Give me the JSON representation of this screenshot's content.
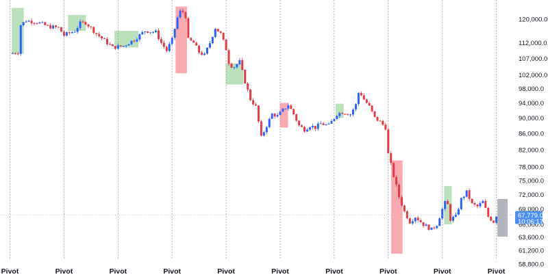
{
  "chart_data": {
    "type": "candlestick",
    "title": "",
    "xlabel": "",
    "ylabel": "",
    "ylim": [
      58000,
      125000
    ],
    "y_scale": "log",
    "y_ticks": [
      {
        "value": 120000,
        "label": "120,000.0"
      },
      {
        "value": 112000,
        "label": "112,000.0"
      },
      {
        "value": 107000,
        "label": "107,000.0"
      },
      {
        "value": 102000,
        "label": "102,000.0"
      },
      {
        "value": 98000,
        "label": "98,000.0"
      },
      {
        "value": 94000,
        "label": "94,000.0"
      },
      {
        "value": 90000,
        "label": "90,000.0"
      },
      {
        "value": 86000,
        "label": "86,000.0"
      },
      {
        "value": 82000,
        "label": "82,000.0"
      },
      {
        "value": 78000,
        "label": "78,000.0"
      },
      {
        "value": 75000,
        "label": "75,000.0"
      },
      {
        "value": 72000,
        "label": "72,000.0"
      },
      {
        "value": 69000,
        "label": "69,000.0"
      },
      {
        "value": 66000,
        "label": "66,000.0"
      },
      {
        "value": 63600,
        "label": "63,600.0"
      },
      {
        "value": 61200,
        "label": "61,200.0"
      },
      {
        "value": 58800,
        "label": "58,800.0"
      }
    ],
    "pivot_label": "Pivot",
    "pivots": [
      0,
      1,
      2,
      3,
      4,
      5,
      6,
      7,
      8,
      9
    ],
    "current_price": {
      "value": 67779,
      "label": "67,779.0",
      "countdown": "10:06:17"
    },
    "colors": {
      "up": "#2962ff",
      "down": "#e53946",
      "zone_green": "#4caf50",
      "zone_red": "#f23645",
      "pivot_line": "#9598a1",
      "price_tag": "#4a8ef5",
      "grey_box": "#b2b5be"
    },
    "anchors": [
      [
        0,
        108500
      ],
      [
        1.5,
        109000
      ],
      [
        2,
        118000
      ],
      [
        3,
        119500
      ],
      [
        5,
        119000
      ],
      [
        7,
        117500
      ],
      [
        9,
        117000
      ],
      [
        10,
        114500
      ],
      [
        12,
        116000
      ],
      [
        13,
        118500
      ],
      [
        14,
        118800
      ],
      [
        16,
        115000
      ],
      [
        18,
        112000
      ],
      [
        19,
        110500
      ],
      [
        21,
        111000
      ],
      [
        23,
        113000
      ],
      [
        25,
        116000
      ],
      [
        27,
        115500
      ],
      [
        28,
        112000
      ],
      [
        29,
        109500
      ],
      [
        30,
        113000
      ],
      [
        31,
        120500
      ],
      [
        31.7,
        123500
      ],
      [
        32.5,
        121000
      ],
      [
        33,
        113000
      ],
      [
        34,
        112000
      ],
      [
        35,
        109000
      ],
      [
        36,
        108000
      ],
      [
        37,
        112000
      ],
      [
        38,
        117000
      ],
      [
        39,
        115000
      ],
      [
        40,
        110000
      ],
      [
        40.6,
        105000
      ],
      [
        41.5,
        104500
      ],
      [
        42.5,
        106000
      ],
      [
        43.5,
        100000
      ],
      [
        44.5,
        95000
      ],
      [
        45.5,
        93000
      ],
      [
        46.5,
        85000
      ],
      [
        47.5,
        88000
      ],
      [
        48.5,
        91000
      ],
      [
        49.5,
        90500
      ],
      [
        50.5,
        92000
      ],
      [
        51.5,
        93500
      ],
      [
        52.5,
        91000
      ],
      [
        53.5,
        88000
      ],
      [
        54.5,
        87000
      ],
      [
        55.5,
        88000
      ],
      [
        56.5,
        87500
      ],
      [
        57.5,
        88500
      ],
      [
        59,
        88000
      ],
      [
        60.5,
        91000
      ],
      [
        61.5,
        91500
      ],
      [
        63,
        91000
      ],
      [
        64,
        93500
      ],
      [
        64.6,
        97500
      ],
      [
        65.5,
        95000
      ],
      [
        66.5,
        93000
      ],
      [
        67.5,
        90000
      ],
      [
        68.5,
        89000
      ],
      [
        69.5,
        87500
      ],
      [
        70,
        81000
      ],
      [
        71,
        76000
      ],
      [
        72,
        71500
      ],
      [
        73,
        68500
      ],
      [
        74,
        66500
      ],
      [
        75,
        67500
      ],
      [
        76.5,
        66000
      ],
      [
        78,
        65000
      ],
      [
        79,
        66000
      ],
      [
        80,
        69000
      ],
      [
        80.8,
        71000
      ],
      [
        81.5,
        67000
      ],
      [
        82.5,
        67500
      ],
      [
        83.5,
        71000
      ],
      [
        84.5,
        72500
      ],
      [
        85.5,
        70000
      ],
      [
        86.5,
        69500
      ],
      [
        87.5,
        70500
      ],
      [
        88.5,
        67500
      ],
      [
        89.5,
        66500
      ],
      [
        90,
        67779
      ]
    ],
    "zones": [
      {
        "color": "green",
        "x0": 0.6,
        "x1": 2.3,
        "y_top": 124000,
        "y_bot": 108500
      },
      {
        "color": "green",
        "x0": 11.0,
        "x1": 13.8,
        "y_top": 121500,
        "y_bot": 116000
      },
      {
        "color": "green",
        "x0": 19.6,
        "x1": 23.5,
        "y_top": 116000,
        "y_bot": 110500
      },
      {
        "color": "red",
        "x0": 30.9,
        "x1": 32.5,
        "y_top": 124500,
        "y_bot": 102500
      },
      {
        "color": "green",
        "x0": 40.2,
        "x1": 42.9,
        "y_top": 105500,
        "y_bot": 99200
      },
      {
        "color": "red",
        "x0": 50.2,
        "x1": 51.2,
        "y_top": 94000,
        "y_bot": 87500
      },
      {
        "color": "green",
        "x0": 60.5,
        "x1": 61.5,
        "y_top": 93800,
        "y_bot": 90000
      },
      {
        "color": "red",
        "x0": 70.8,
        "x1": 72.4,
        "y_top": 79500,
        "y_bot": 60600
      },
      {
        "color": "green",
        "x0": 80.6,
        "x1": 81.5,
        "y_top": 73800,
        "y_bot": 66000
      }
    ]
  }
}
